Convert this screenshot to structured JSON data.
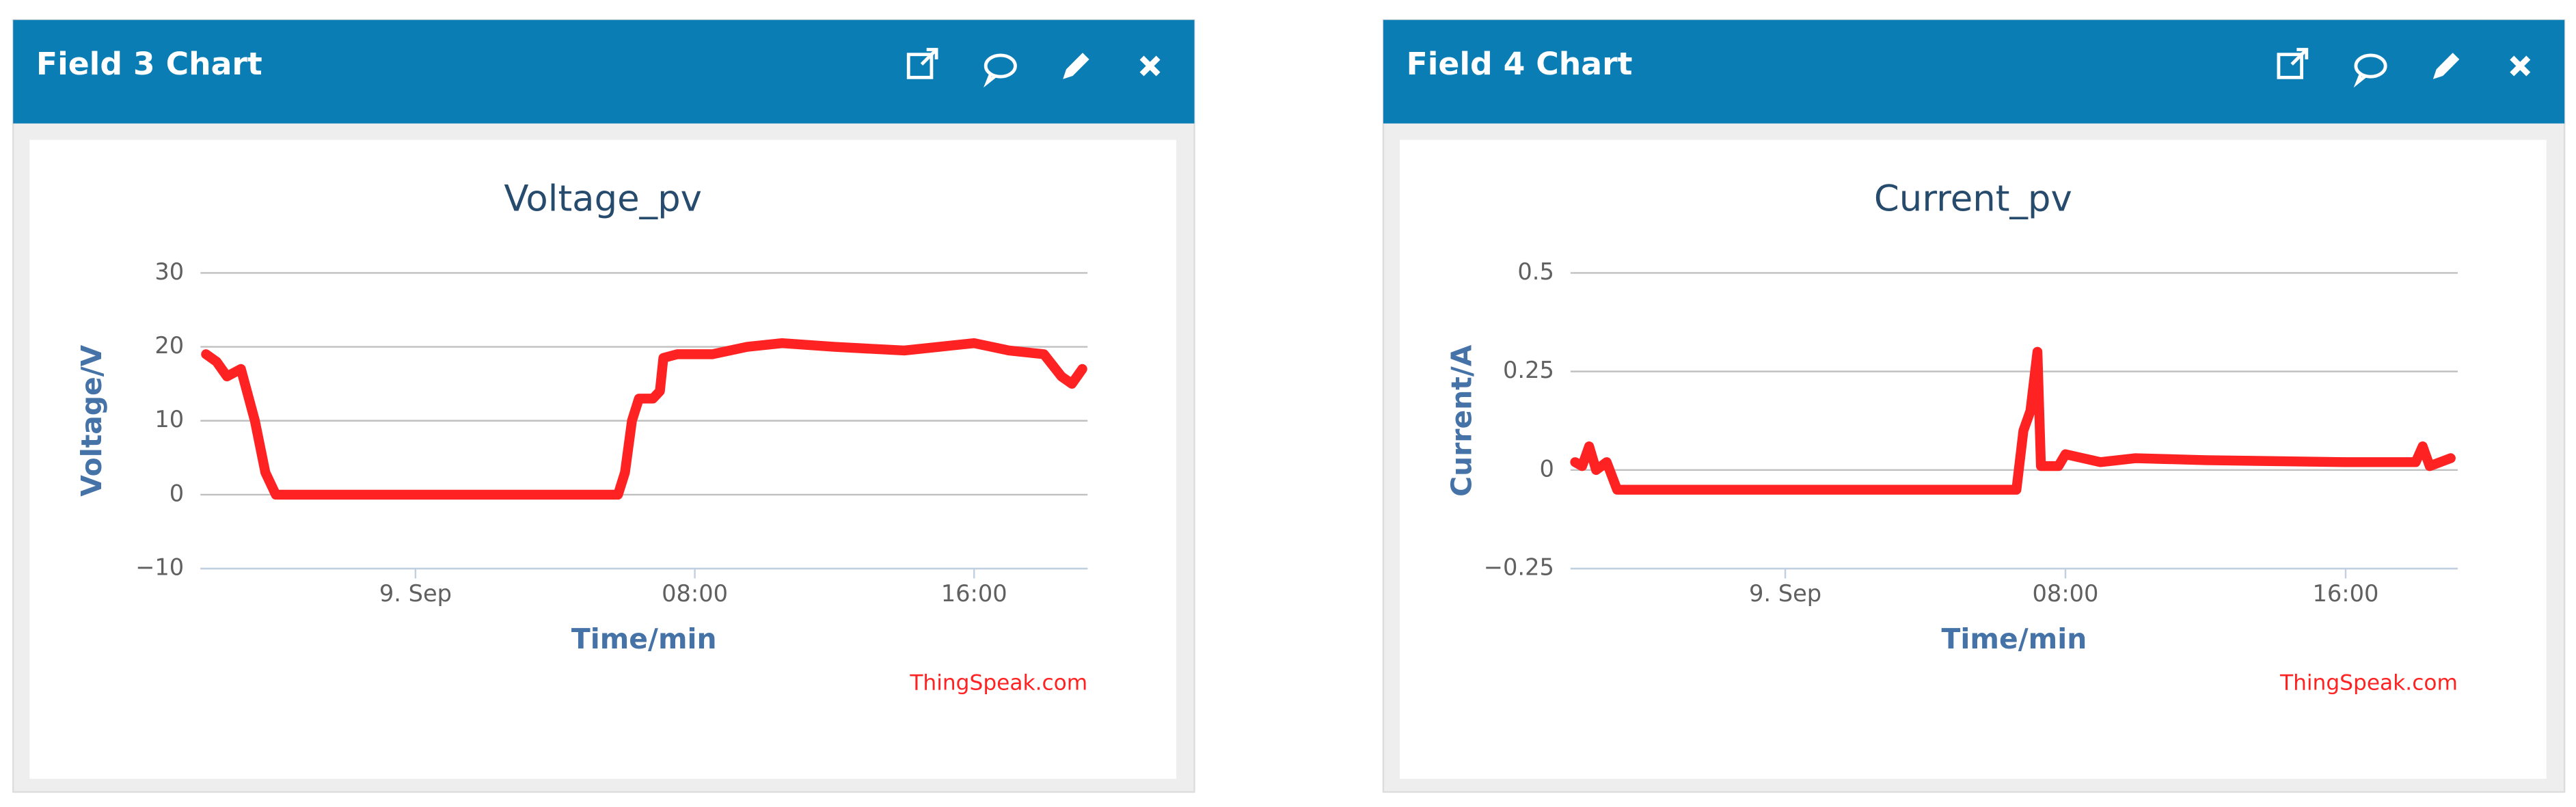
{
  "panels": [
    {
      "title": "Field 3 Chart"
    },
    {
      "title": "Field 4 Chart"
    }
  ],
  "chart_data": [
    {
      "type": "line",
      "title": "Voltage_pv",
      "xlabel": "Time/min",
      "ylabel": "Voltage/V",
      "credit": "ThingSpeak.com",
      "x": [
        -6.0,
        -5.7,
        -5.4,
        -5.0,
        -4.6,
        -4.3,
        -4.0,
        5.8,
        6.0,
        6.2,
        6.4,
        6.8,
        7.0,
        7.1,
        7.5,
        8.5,
        9.5,
        10.5,
        12,
        14,
        15,
        16,
        17,
        18,
        18.5,
        18.8,
        19.1
      ],
      "values": [
        19,
        18,
        16,
        17,
        10,
        3,
        0,
        0,
        3,
        10,
        13,
        13,
        14,
        18.5,
        19,
        19,
        20,
        20.5,
        20,
        19.5,
        20,
        20.5,
        19.5,
        19,
        16,
        15,
        17
      ],
      "color": "#ff2222",
      "xlim": [
        -6.16,
        19.25
      ],
      "xticks": [
        {
          "value": 0,
          "label": "9. Sep"
        },
        {
          "value": 8,
          "label": "08:00"
        },
        {
          "value": 16,
          "label": "16:00"
        }
      ],
      "ylim": [
        -10,
        30
      ],
      "yticks": [
        {
          "value": -10,
          "label": "−10"
        },
        0,
        10,
        20,
        30
      ],
      "grid": true
    },
    {
      "type": "line",
      "title": "Current_pv",
      "xlabel": "Time/min",
      "ylabel": "Current/A",
      "credit": "ThingSpeak.com",
      "x": [
        -6.0,
        -5.8,
        -5.6,
        -5.4,
        -5.1,
        -4.8,
        6.6,
        6.8,
        7.0,
        7.2,
        7.3,
        7.8,
        8.0,
        9,
        10,
        12,
        16,
        18,
        18.2,
        18.4,
        19
      ],
      "values": [
        0.02,
        0.01,
        0.06,
        0.0,
        0.02,
        -0.05,
        -0.05,
        0.1,
        0.15,
        0.3,
        0.01,
        0.01,
        0.04,
        0.02,
        0.03,
        0.025,
        0.02,
        0.02,
        0.06,
        0.01,
        0.03
      ],
      "color": "#ff2222",
      "xlim": [
        -6.13,
        19.2
      ],
      "xticks": [
        {
          "value": 0,
          "label": "9. Sep"
        },
        {
          "value": 8,
          "label": "08:00"
        },
        {
          "value": 16,
          "label": "16:00"
        }
      ],
      "ylim": [
        -0.25,
        0.5
      ],
      "yticks": [
        {
          "value": -0.25,
          "label": "−0.25"
        },
        0,
        0.25,
        0.5
      ],
      "grid": true
    }
  ]
}
